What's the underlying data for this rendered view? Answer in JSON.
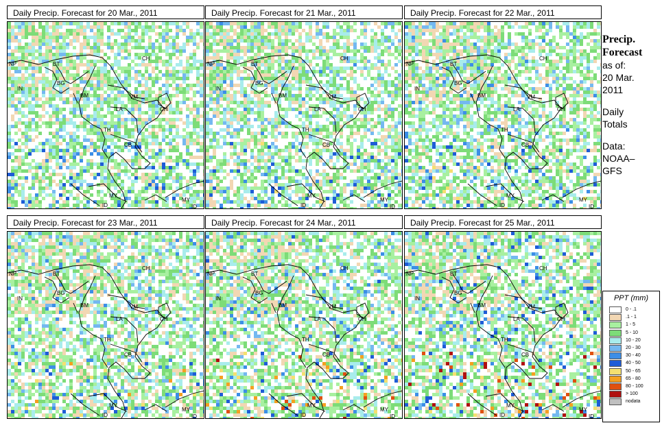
{
  "chart_data": {
    "type": "heatmap",
    "panels": [
      {
        "title": "Daily Precip. Forecast for  20 Mar., 2011",
        "day": 20,
        "intensity": 0.55
      },
      {
        "title": "Daily Precip. Forecast for  21 Mar., 2011",
        "day": 21,
        "intensity": 0.6
      },
      {
        "title": "Daily Precip. Forecast for  22 Mar., 2011",
        "day": 22,
        "intensity": 0.65
      },
      {
        "title": "Daily Precip. Forecast for  23 Mar., 2011",
        "day": 23,
        "intensity": 0.7
      },
      {
        "title": "Daily Precip. Forecast for  24 Mar., 2011",
        "day": 24,
        "intensity": 0.8
      },
      {
        "title": "Daily Precip. Forecast for  25 Mar., 2011",
        "day": 25,
        "intensity": 0.9
      }
    ],
    "country_labels": [
      "NP",
      "BT",
      "BG",
      "IN",
      "BM",
      "CH",
      "VM",
      "LA",
      "TH",
      "CB",
      "CH",
      "MY",
      "ID",
      "MY",
      "ID"
    ],
    "legend": {
      "title": "PPT (mm)",
      "entries": [
        {
          "label": "0 - .1",
          "color": "#ffffff"
        },
        {
          "label": ".1 - 1",
          "color": "#f2d7b3"
        },
        {
          "label": "1 - 5",
          "color": "#a8f0a0"
        },
        {
          "label": "5 - 10",
          "color": "#7ddc78"
        },
        {
          "label": "10 - 20",
          "color": "#a8ecec"
        },
        {
          "label": "20 - 30",
          "color": "#74b8f0"
        },
        {
          "label": "30 - 40",
          "color": "#3c8ee6"
        },
        {
          "label": "40 - 50",
          "color": "#1e5cd6"
        },
        {
          "label": "50 - 65",
          "color": "#f4e070"
        },
        {
          "label": "65 - 80",
          "color": "#f4a020"
        },
        {
          "label": "80 - 100",
          "color": "#e05010"
        },
        {
          "label": "> 100",
          "color": "#b01010"
        },
        {
          "label": "nodata",
          "color": "#c0c0c0"
        }
      ]
    }
  },
  "side": {
    "title1": "Precip.",
    "title2": "Forecast",
    "asof": "as of:",
    "date1": "20 Mar.",
    "date2": "2011",
    "daily1": "Daily",
    "daily2": "Totals",
    "data1": "Data:",
    "data2": "NOAA–",
    "data3": "GFS"
  }
}
